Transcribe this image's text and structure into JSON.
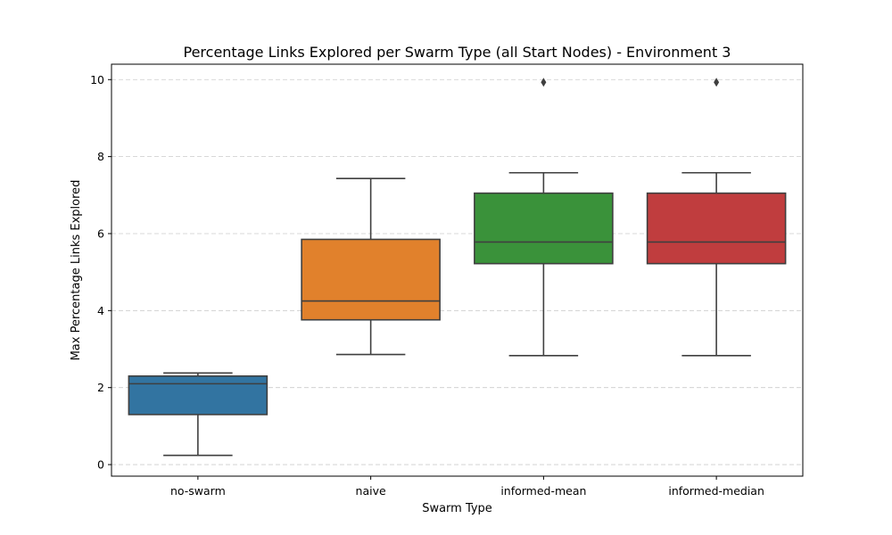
{
  "chart_data": {
    "type": "box",
    "title": "Percentage Links Explored per Swarm Type (all Start Nodes) - Environment 3",
    "xlabel": "Swarm Type",
    "ylabel": "Max Percentage Links Explored",
    "ylim": [
      -0.3,
      10.4
    ],
    "yticks": [
      0,
      2,
      4,
      6,
      8,
      10
    ],
    "grid": "y-dashed",
    "categories": [
      "no-swarm",
      "naive",
      "informed-mean",
      "informed-median"
    ],
    "colors": [
      "#3274a1",
      "#e1812c",
      "#3a923a",
      "#c03d3e"
    ],
    "boxes": [
      {
        "whisker_low": 0.24,
        "q1": 1.3,
        "median": 2.1,
        "q3": 2.3,
        "whisker_high": 2.38,
        "outliers": []
      },
      {
        "whisker_low": 2.86,
        "q1": 3.76,
        "median": 4.25,
        "q3": 5.85,
        "whisker_high": 7.43,
        "outliers": []
      },
      {
        "whisker_low": 2.83,
        "q1": 5.22,
        "median": 5.78,
        "q3": 7.05,
        "whisker_high": 7.58,
        "outliers": [
          9.93
        ]
      },
      {
        "whisker_low": 2.83,
        "q1": 5.22,
        "median": 5.78,
        "q3": 7.05,
        "whisker_high": 7.58,
        "outliers": [
          9.93
        ]
      }
    ]
  }
}
